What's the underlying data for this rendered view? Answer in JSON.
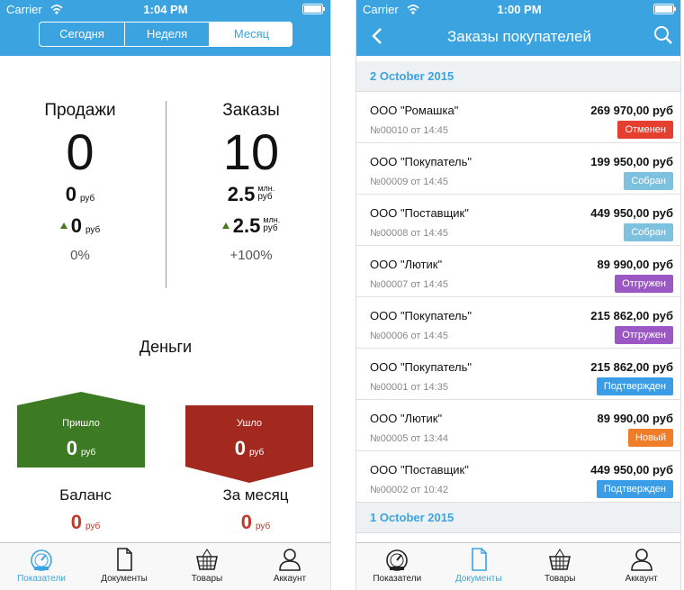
{
  "left_screen": {
    "status_bar": {
      "carrier": "Carrier",
      "time": "1:04 PM"
    },
    "segments": [
      "Сегодня",
      "Неделя",
      "Месяц"
    ],
    "selected_segment": 2,
    "stats": [
      {
        "title": "Продажи",
        "count": "0",
        "amount": "0",
        "amount_unit": "руб",
        "delta": "0",
        "delta_unit": "руб",
        "percent": "0%"
      },
      {
        "title": "Заказы",
        "count": "10",
        "amount": "2.5",
        "amount_scale": "млн.",
        "amount_unit": "руб",
        "delta": "2.5",
        "delta_scale": "млн.",
        "delta_unit": "руб",
        "percent": "+100%"
      }
    ],
    "money": {
      "title": "Деньги",
      "income": {
        "label": "Пришло",
        "amount": "0",
        "unit": "руб",
        "color": "#3d7a24"
      },
      "expense": {
        "label": "Ушло",
        "amount": "0",
        "unit": "руб",
        "color": "#a3291f"
      },
      "balance": {
        "label": "Баланс",
        "amount": "0",
        "unit": "руб"
      },
      "month": {
        "label": "За месяц",
        "amount": "0",
        "unit": "руб"
      }
    },
    "tab_bar": {
      "tabs": [
        "Показатели",
        "Документы",
        "Товары",
        "Аккаунт"
      ],
      "active": 0
    }
  },
  "right_screen": {
    "status_bar": {
      "carrier": "Carrier",
      "time": "1:00 PM"
    },
    "title": "Заказы покупателей",
    "sections": [
      {
        "date": "2 October 2015",
        "orders": [
          {
            "customer": "ООО \"Ромашка\"",
            "amount": "269 970,00 руб",
            "number": "№00010 от 14:45",
            "status": "Отменен",
            "status_color": "#e5402f"
          },
          {
            "customer": "ООО \"Покупатель\"",
            "amount": "199 950,00 руб",
            "number": "№00009 от 14:45",
            "status": "Собран",
            "status_color": "#7cc2e0"
          },
          {
            "customer": "ООО \"Поставщик\"",
            "amount": "449 950,00 руб",
            "number": "№00008 от 14:45",
            "status": "Собран",
            "status_color": "#7cc2e0"
          },
          {
            "customer": "ООО \"Лютик\"",
            "amount": "89 990,00 руб",
            "number": "№00007 от 14:45",
            "status": "Отгружен",
            "status_color": "#9b58c4"
          },
          {
            "customer": "ООО \"Покупатель\"",
            "amount": "215 862,00 руб",
            "number": "№00006 от 14:45",
            "status": "Отгружен",
            "status_color": "#9b58c4"
          },
          {
            "customer": "ООО \"Покупатель\"",
            "amount": "215 862,00 руб",
            "number": "№00001 от 14:35",
            "status": "Подтвержден",
            "status_color": "#3a9de6"
          },
          {
            "customer": "ООО \"Лютик\"",
            "amount": "89 990,00 руб",
            "number": "№00005 от 13:44",
            "status": "Новый",
            "status_color": "#ef7d2a"
          },
          {
            "customer": "ООО \"Поставщик\"",
            "amount": "449 950,00 руб",
            "number": "№00002 от 10:42",
            "status": "Подтвержден",
            "status_color": "#3a9de6"
          }
        ]
      },
      {
        "date": "1 October 2015"
      }
    ],
    "tab_bar": {
      "tabs": [
        "Показатели",
        "Документы",
        "Товары",
        "Аккаунт"
      ],
      "active": 1
    }
  }
}
